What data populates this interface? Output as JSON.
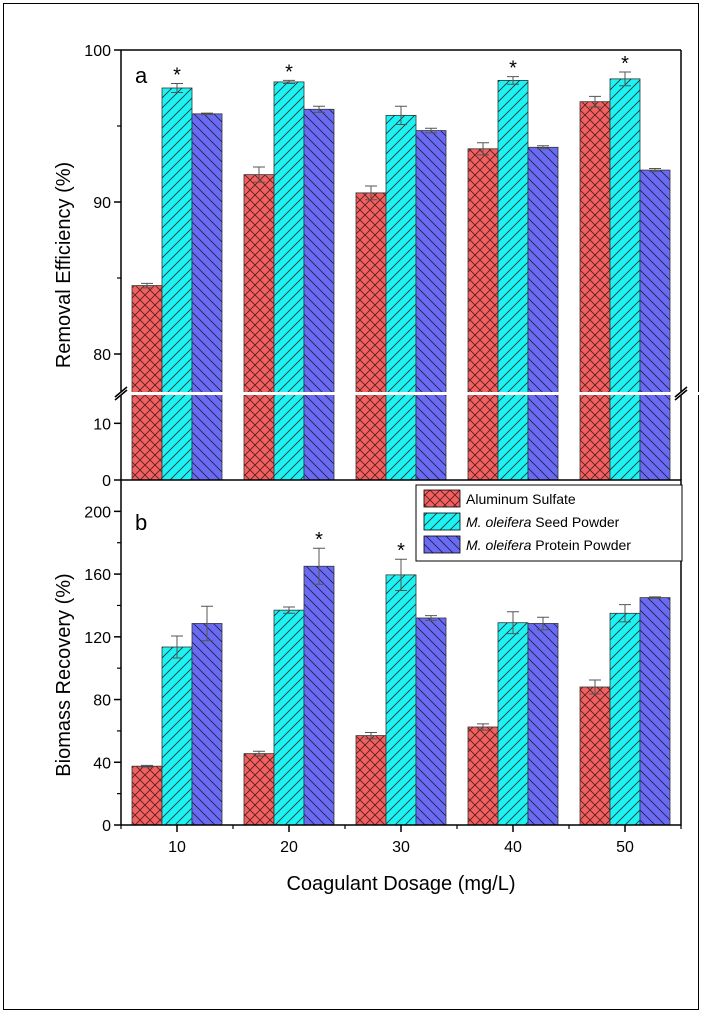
{
  "legend": {
    "items": [
      {
        "label": "Aluminum Sulfate",
        "color": "#f26161",
        "pattern": "cross"
      },
      {
        "italic": "M. oleifera",
        "label": " Seed Powder",
        "color": "#1ff2f2",
        "pattern": "diag"
      },
      {
        "italic": "M. oleifera",
        "label": " Protein Powder",
        "color": "#6b6bf2",
        "pattern": "anti"
      }
    ]
  },
  "xaxis": {
    "label": "Coagulant Dosage (mg/L)",
    "ticks": [
      "10",
      "20",
      "30",
      "40",
      "50"
    ]
  },
  "chart_data": [
    {
      "type": "bar",
      "panel_label": "a",
      "categories": [
        "10",
        "20",
        "30",
        "40",
        "50"
      ],
      "ylabel": "Removal Efficiency (%)",
      "ylim_upper": [
        77.5,
        100
      ],
      "ylim_lower": [
        0,
        15
      ],
      "yticks_upper": [
        "80",
        "90",
        "100"
      ],
      "yticks_lower": [
        "0",
        "10"
      ],
      "axis_break": true,
      "series": [
        {
          "name": "Aluminum Sulfate",
          "values": [
            84.5,
            91.8,
            90.6,
            93.5,
            96.6
          ],
          "errors": [
            0.15,
            0.5,
            0.45,
            0.4,
            0.35
          ]
        },
        {
          "name": "M. oleifera Seed Powder",
          "values": [
            97.5,
            97.9,
            95.7,
            98.0,
            98.1
          ],
          "errors": [
            0.3,
            0.1,
            0.6,
            0.25,
            0.45
          ],
          "significance": [
            "*",
            "*",
            "",
            "*",
            "*"
          ]
        },
        {
          "name": "M. oleifera Protein Powder",
          "values": [
            95.8,
            96.1,
            94.7,
            93.6,
            92.1
          ],
          "errors": [
            0.05,
            0.2,
            0.15,
            0.1,
            0.1
          ]
        }
      ]
    },
    {
      "type": "bar",
      "panel_label": "b",
      "categories": [
        "10",
        "20",
        "30",
        "40",
        "50"
      ],
      "ylabel": "Biomass Recovery (%)",
      "ylim": [
        0,
        220
      ],
      "yticks": [
        "0",
        "40",
        "80",
        "120",
        "160",
        "200"
      ],
      "series": [
        {
          "name": "Aluminum Sulfate",
          "values": [
            37.5,
            45.5,
            57.0,
            62.5,
            88.0
          ],
          "errors": [
            0.5,
            1.5,
            2.0,
            2.0,
            4.5
          ]
        },
        {
          "name": "M. oleifera Seed Powder",
          "values": [
            113.5,
            137.0,
            159.5,
            129.0,
            135.0
          ],
          "errors": [
            7.0,
            2.0,
            10.0,
            7.0,
            5.5
          ],
          "significance": [
            "",
            "",
            "*",
            "",
            ""
          ]
        },
        {
          "name": "M. oleifera Protein Powder",
          "values": [
            128.5,
            165.0,
            132.0,
            128.5,
            145.0
          ],
          "errors": [
            11.0,
            11.5,
            1.5,
            4.0,
            0.5
          ],
          "significance": [
            "",
            "*",
            "",
            "",
            ""
          ]
        }
      ]
    }
  ]
}
